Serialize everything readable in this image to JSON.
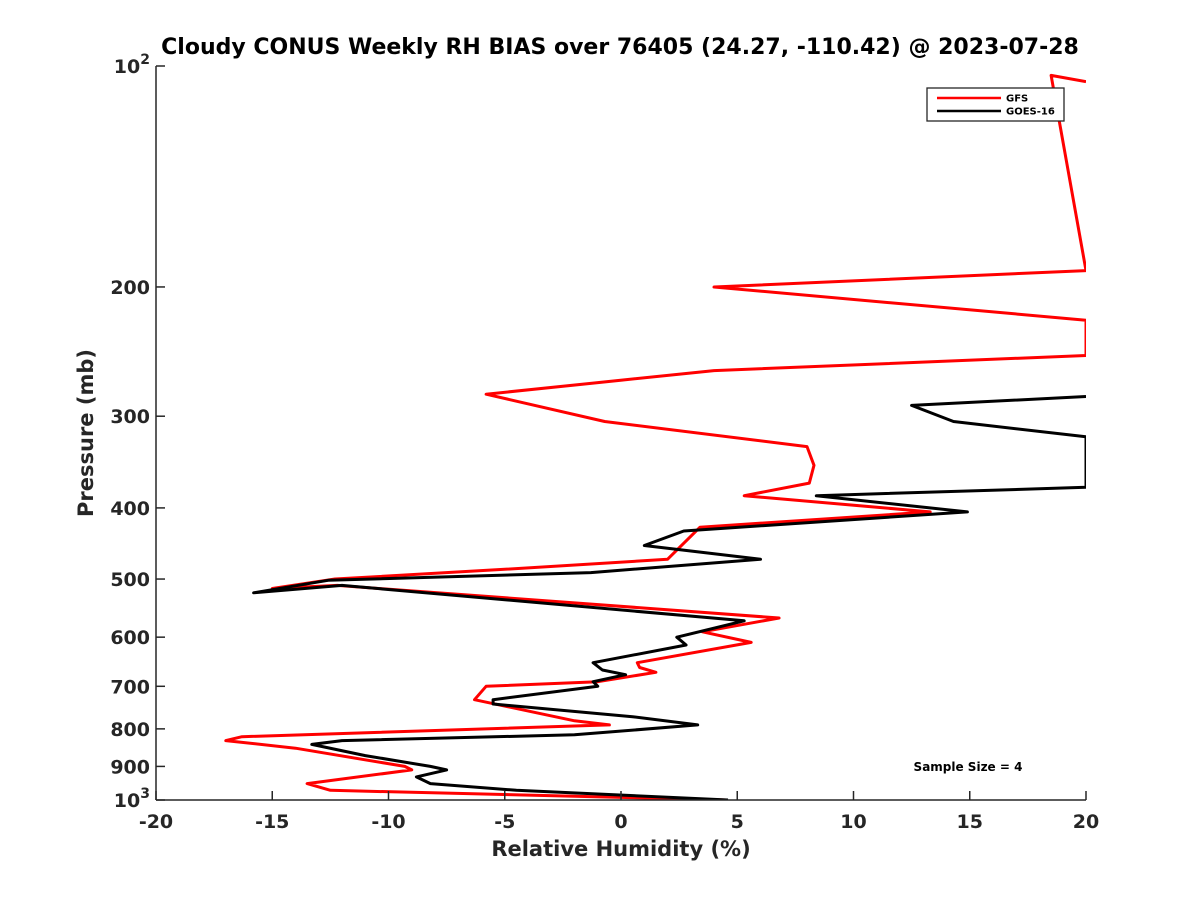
{
  "chart_data": {
    "type": "line",
    "title": "Cloudy CONUS Weekly RH BIAS over 76405 (24.27, -110.42) @ 2023-07-28",
    "xlabel": "Relative Humidity (%)",
    "ylabel": "Pressure (mb)",
    "xlim": [
      -20,
      20
    ],
    "ylim": [
      100,
      1000
    ],
    "y_scale": "log",
    "y_reversed": true,
    "grid": false,
    "legend_position": "top-right",
    "x_ticks": [
      "-20",
      "-15",
      "-10",
      "-5",
      "0",
      "5",
      "10",
      "15",
      "20"
    ],
    "y_ticks": [
      {
        "value": 100,
        "label": "10",
        "sup": "2"
      },
      {
        "value": 200,
        "label": "200",
        "sup": ""
      },
      {
        "value": 300,
        "label": "300",
        "sup": ""
      },
      {
        "value": 400,
        "label": "400",
        "sup": ""
      },
      {
        "value": 500,
        "label": "500",
        "sup": ""
      },
      {
        "value": 600,
        "label": "600",
        "sup": ""
      },
      {
        "value": 700,
        "label": "700",
        "sup": ""
      },
      {
        "value": 800,
        "label": "800",
        "sup": ""
      },
      {
        "value": 900,
        "label": "900",
        "sup": ""
      },
      {
        "value": 1000,
        "label": "10",
        "sup": "3"
      }
    ],
    "series": [
      {
        "name": "GFS",
        "color": "#ff0000",
        "points": [
          [
            4.5,
            1000
          ],
          [
            -12.5,
            970
          ],
          [
            -13.5,
            950
          ],
          [
            -9,
            910
          ],
          [
            -9.3,
            900
          ],
          [
            -14,
            850
          ],
          [
            -17,
            830
          ],
          [
            -16.3,
            820
          ],
          [
            -0.5,
            790
          ],
          [
            -2,
            780
          ],
          [
            -6.3,
            730
          ],
          [
            -5.8,
            700
          ],
          [
            -1,
            690
          ],
          [
            1.5,
            670
          ],
          [
            0.8,
            660
          ],
          [
            0.7,
            650
          ],
          [
            5.6,
            610
          ],
          [
            3.5,
            590
          ],
          [
            6.8,
            565
          ],
          [
            -12.2,
            510
          ],
          [
            -15,
            515
          ],
          [
            -12.3,
            500
          ],
          [
            -5,
            485
          ],
          [
            2,
            470
          ],
          [
            3.4,
            425
          ],
          [
            13.3,
            405
          ],
          [
            5.3,
            385
          ],
          [
            8.1,
            370
          ],
          [
            8.3,
            350
          ],
          [
            8,
            330
          ],
          [
            -0.7,
            305
          ],
          [
            -5.8,
            280
          ],
          [
            4,
            260
          ],
          [
            20,
            248
          ],
          [
            20,
            222
          ],
          [
            4,
            200
          ],
          [
            20,
            190
          ],
          [
            18.5,
            103
          ],
          [
            20,
            105
          ]
        ]
      },
      {
        "name": "GOES-16",
        "color": "#000000",
        "points": [
          [
            4.6,
            1000
          ],
          [
            -4.5,
            970
          ],
          [
            -8.2,
            950
          ],
          [
            -8.8,
            930
          ],
          [
            -7.5,
            910
          ],
          [
            -8.2,
            900
          ],
          [
            -11,
            870
          ],
          [
            -13.3,
            840
          ],
          [
            -12,
            830
          ],
          [
            -2,
            815
          ],
          [
            3.3,
            790
          ],
          [
            0.5,
            770
          ],
          [
            -5.5,
            740
          ],
          [
            -5.5,
            730
          ],
          [
            -1,
            700
          ],
          [
            -1.2,
            690
          ],
          [
            0.2,
            675
          ],
          [
            -0.8,
            665
          ],
          [
            -1.2,
            650
          ],
          [
            2.8,
            615
          ],
          [
            2.4,
            600
          ],
          [
            5.3,
            570
          ],
          [
            -12,
            510
          ],
          [
            -15.8,
            522
          ],
          [
            -12.6,
            502
          ],
          [
            -1.3,
            490
          ],
          [
            6,
            470
          ],
          [
            1,
            450
          ],
          [
            2.7,
            430
          ],
          [
            14.9,
            405
          ],
          [
            8.4,
            385
          ],
          [
            20,
            375
          ],
          [
            20,
            320
          ],
          [
            14.3,
            305
          ],
          [
            12.5,
            290
          ],
          [
            20,
            282
          ]
        ]
      }
    ],
    "annotations": [
      "Sample Size = 4"
    ]
  }
}
